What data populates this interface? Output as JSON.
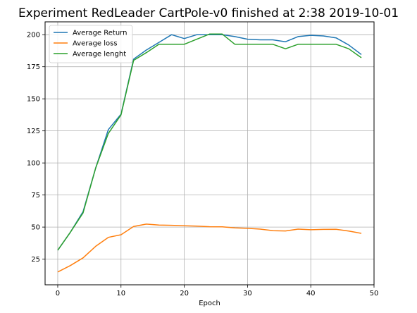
{
  "chart_data": {
    "type": "line",
    "title": "Experiment RedLeader CartPole-v0 finished at 2:38 2019-10-01",
    "xlabel": "Epoch",
    "ylabel": "",
    "xlim": [
      -2,
      50
    ],
    "ylim": [
      5,
      210
    ],
    "xticks": [
      0,
      10,
      20,
      30,
      40,
      50
    ],
    "yticks": [
      25,
      50,
      75,
      100,
      125,
      150,
      175,
      200
    ],
    "grid": true,
    "legend_position": "upper-left",
    "x": [
      0,
      2,
      4,
      6,
      8,
      10,
      12,
      14,
      16,
      18,
      20,
      22,
      24,
      26,
      28,
      30,
      32,
      34,
      36,
      38,
      40,
      42,
      44,
      46,
      48
    ],
    "series": [
      {
        "name": "Average Return",
        "color": "#1f77b4",
        "values": [
          32,
          46,
          62,
          96,
          126,
          138,
          181,
          188,
          194,
          200,
          197,
          200,
          200,
          200,
          198.5,
          196.5,
          196,
          196,
          194.5,
          198.5,
          199.5,
          199,
          197.5,
          192,
          184.5
        ]
      },
      {
        "name": "Average loss",
        "color": "#ff7f0e",
        "values": [
          15,
          20,
          26,
          35,
          42,
          44,
          50.5,
          52.3,
          51.6,
          51.4,
          51,
          50.7,
          50.3,
          50.2,
          49.4,
          49,
          48.4,
          47.2,
          47,
          48.4,
          47.9,
          48.2,
          48.3,
          46.9,
          45.1
        ]
      },
      {
        "name": "Average lenght",
        "color": "#2ca02c",
        "values": [
          32,
          46,
          61,
          96,
          123,
          137.5,
          180,
          186,
          192.5,
          192.5,
          192.5,
          196.5,
          200.5,
          200.5,
          192.5,
          192.5,
          192.5,
          192.5,
          189,
          192.5,
          192.5,
          192.5,
          192.5,
          189,
          182
        ]
      }
    ]
  }
}
